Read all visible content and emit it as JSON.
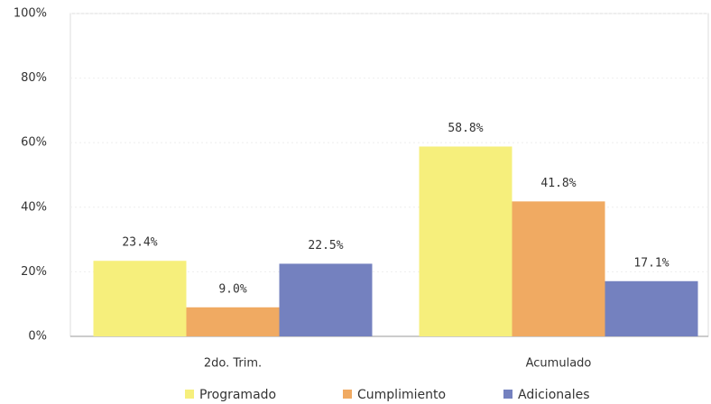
{
  "chart_data": {
    "type": "bar",
    "categories": [
      "2do. Trim.",
      "Acumulado"
    ],
    "series": [
      {
        "name": "Programado",
        "color": "#f6ef7c",
        "values": [
          23.4,
          58.8
        ],
        "value_labels": [
          "23.4%",
          "58.8%"
        ]
      },
      {
        "name": "Cumplimiento",
        "color": "#f0aa62",
        "values": [
          9.0,
          41.8
        ],
        "value_labels": [
          "9.0%",
          "41.8%"
        ]
      },
      {
        "name": "Adicionales",
        "color": "#7481bf",
        "values": [
          22.5,
          17.1
        ],
        "value_labels": [
          "22.5%",
          "17.1%"
        ]
      }
    ],
    "ylim": [
      0,
      100
    ],
    "yticks": [
      {
        "value": 0,
        "label": "0%"
      },
      {
        "value": 20,
        "label": "20%"
      },
      {
        "value": 40,
        "label": "40%"
      },
      {
        "value": 60,
        "label": "60%"
      },
      {
        "value": 80,
        "label": "80%"
      },
      {
        "value": 100,
        "label": "100%"
      }
    ],
    "grid": true,
    "legend": "bottom"
  }
}
